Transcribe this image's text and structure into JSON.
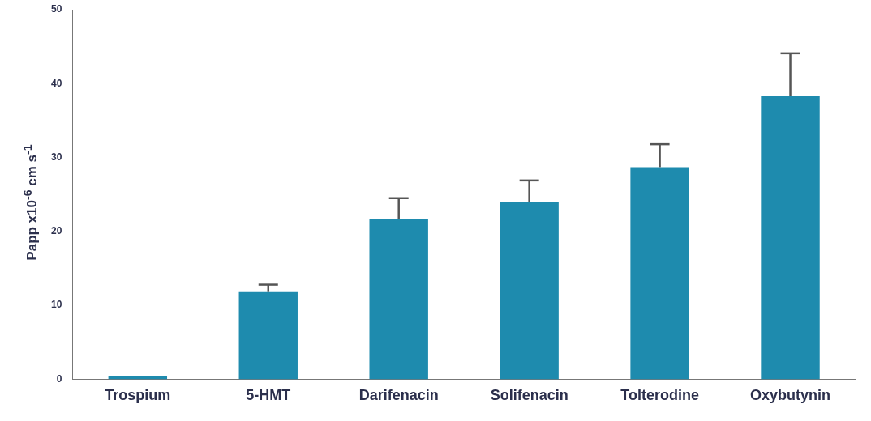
{
  "chart_data": {
    "type": "bar",
    "ylabel": "Papp x10$^{-6}$ cm s$^{-1}$",
    "categories": [
      "Trospium",
      "5-HMT",
      "Darifenacin",
      "Solifenacin",
      "Tolterodine",
      "Oxybutynin"
    ],
    "values": [
      0.4,
      11.8,
      21.7,
      24.0,
      28.7,
      38.3
    ],
    "errors": [
      null,
      [
        11.8,
        12.8
      ],
      [
        21.7,
        24.5
      ],
      [
        24.0,
        26.9
      ],
      [
        28.7,
        31.8
      ],
      [
        38.3,
        44.1
      ]
    ],
    "color": "#1e8bae",
    "ylim": [
      0,
      50
    ],
    "yticks": [
      0,
      10,
      20,
      30,
      40,
      50
    ],
    "grid": false,
    "legend": false
  }
}
